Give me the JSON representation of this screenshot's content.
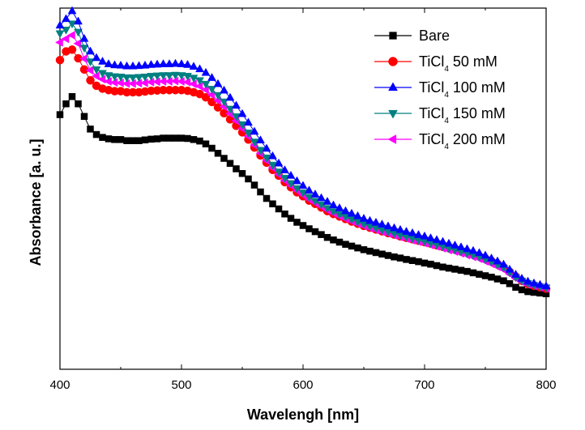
{
  "chart_data": {
    "type": "line",
    "title": "",
    "xlabel": "Wavelengh [nm]",
    "ylabel": "Absorbance [a. u.]",
    "xlim": [
      400,
      800
    ],
    "ylim": [
      0,
      1
    ],
    "xticks": [
      400,
      500,
      600,
      700,
      800
    ],
    "yticks_shown": false,
    "grid": false,
    "legend_position": "top-right",
    "x": [
      400,
      405,
      410,
      415,
      420,
      425,
      430,
      435,
      440,
      445,
      450,
      455,
      460,
      465,
      470,
      475,
      480,
      485,
      490,
      495,
      500,
      505,
      510,
      515,
      520,
      525,
      530,
      535,
      540,
      545,
      550,
      555,
      560,
      565,
      570,
      575,
      580,
      585,
      590,
      595,
      600,
      605,
      610,
      615,
      620,
      625,
      630,
      635,
      640,
      645,
      650,
      655,
      660,
      665,
      670,
      675,
      680,
      685,
      690,
      695,
      700,
      705,
      710,
      715,
      720,
      725,
      730,
      735,
      740,
      745,
      750,
      755,
      760,
      765,
      770,
      775,
      780,
      785,
      790,
      795,
      800
    ],
    "series": [
      {
        "name": "Bare",
        "label_parts": [
          "Bare"
        ],
        "color": "#000000",
        "marker": "square",
        "values": [
          0.705,
          0.735,
          0.755,
          0.735,
          0.7,
          0.665,
          0.65,
          0.642,
          0.638,
          0.636,
          0.636,
          0.633,
          0.633,
          0.633,
          0.635,
          0.637,
          0.638,
          0.64,
          0.64,
          0.64,
          0.64,
          0.639,
          0.636,
          0.632,
          0.624,
          0.612,
          0.598,
          0.584,
          0.57,
          0.555,
          0.542,
          0.527,
          0.51,
          0.491,
          0.473,
          0.458,
          0.444,
          0.43,
          0.418,
          0.407,
          0.398,
          0.389,
          0.381,
          0.373,
          0.365,
          0.358,
          0.352,
          0.346,
          0.341,
          0.336,
          0.331,
          0.327,
          0.323,
          0.319,
          0.315,
          0.311,
          0.308,
          0.304,
          0.301,
          0.298,
          0.294,
          0.291,
          0.287,
          0.283,
          0.28,
          0.277,
          0.274,
          0.271,
          0.267,
          0.263,
          0.259,
          0.255,
          0.25,
          0.245,
          0.237,
          0.227,
          0.22,
          0.215,
          0.213,
          0.211,
          0.209
        ]
      },
      {
        "name": "TiCl4 50 mM",
        "label_parts": [
          "TiCl",
          "4",
          "  50 mM"
        ],
        "color": "#ff0000",
        "marker": "circle",
        "values": [
          0.856,
          0.88,
          0.885,
          0.861,
          0.83,
          0.8,
          0.785,
          0.777,
          0.773,
          0.77,
          0.77,
          0.767,
          0.767,
          0.767,
          0.769,
          0.771,
          0.772,
          0.773,
          0.773,
          0.773,
          0.773,
          0.771,
          0.767,
          0.762,
          0.753,
          0.74,
          0.725,
          0.709,
          0.692,
          0.674,
          0.656,
          0.636,
          0.614,
          0.592,
          0.572,
          0.552,
          0.536,
          0.518,
          0.504,
          0.49,
          0.479,
          0.467,
          0.458,
          0.448,
          0.438,
          0.43,
          0.423,
          0.416,
          0.409,
          0.403,
          0.397,
          0.392,
          0.387,
          0.382,
          0.377,
          0.373,
          0.368,
          0.364,
          0.36,
          0.356,
          0.352,
          0.348,
          0.343,
          0.339,
          0.335,
          0.331,
          0.326,
          0.322,
          0.318,
          0.313,
          0.307,
          0.3,
          0.292,
          0.283,
          0.27,
          0.257,
          0.245,
          0.236,
          0.231,
          0.227,
          0.223
        ]
      },
      {
        "name": "TiCl4 100 mM",
        "label_parts": [
          "TiCl",
          "4",
          " 100 mM"
        ],
        "color": "#0000ff",
        "marker": "triangle-up",
        "values": [
          0.952,
          0.97,
          0.992,
          0.963,
          0.915,
          0.88,
          0.862,
          0.852,
          0.845,
          0.842,
          0.841,
          0.839,
          0.839,
          0.84,
          0.841,
          0.843,
          0.844,
          0.845,
          0.845,
          0.846,
          0.845,
          0.843,
          0.838,
          0.831,
          0.821,
          0.807,
          0.79,
          0.772,
          0.752,
          0.73,
          0.707,
          0.683,
          0.658,
          0.634,
          0.611,
          0.59,
          0.57,
          0.551,
          0.536,
          0.521,
          0.508,
          0.495,
          0.484,
          0.474,
          0.464,
          0.454,
          0.446,
          0.438,
          0.431,
          0.424,
          0.417,
          0.411,
          0.406,
          0.401,
          0.396,
          0.391,
          0.386,
          0.381,
          0.377,
          0.372,
          0.368,
          0.363,
          0.358,
          0.353,
          0.348,
          0.343,
          0.338,
          0.333,
          0.328,
          0.322,
          0.315,
          0.307,
          0.299,
          0.29,
          0.276,
          0.262,
          0.251,
          0.243,
          0.238,
          0.234,
          0.23
        ]
      },
      {
        "name": "TiCl4 150 mM",
        "label_parts": [
          "TiCl",
          "4",
          " 150 mM"
        ],
        "color": "#008080",
        "marker": "triangle-down",
        "values": [
          0.93,
          0.94,
          0.957,
          0.934,
          0.89,
          0.852,
          0.83,
          0.82,
          0.814,
          0.811,
          0.81,
          0.808,
          0.808,
          0.809,
          0.81,
          0.812,
          0.813,
          0.814,
          0.814,
          0.815,
          0.814,
          0.812,
          0.807,
          0.8,
          0.79,
          0.776,
          0.759,
          0.741,
          0.721,
          0.7,
          0.678,
          0.655,
          0.63,
          0.607,
          0.586,
          0.566,
          0.547,
          0.53,
          0.515,
          0.501,
          0.489,
          0.477,
          0.466,
          0.456,
          0.446,
          0.437,
          0.429,
          0.422,
          0.415,
          0.408,
          0.402,
          0.396,
          0.391,
          0.386,
          0.381,
          0.376,
          0.371,
          0.367,
          0.362,
          0.358,
          0.354,
          0.349,
          0.345,
          0.34,
          0.335,
          0.331,
          0.326,
          0.321,
          0.316,
          0.311,
          0.304,
          0.297,
          0.289,
          0.281,
          0.268,
          0.255,
          0.245,
          0.238,
          0.233,
          0.229,
          0.226
        ]
      },
      {
        "name": "TiCl4 200 mM",
        "label_parts": [
          "TiCl",
          "4",
          " 200 mM"
        ],
        "color": "#ff00ff",
        "marker": "triangle-left",
        "values": [
          0.905,
          0.915,
          0.925,
          0.902,
          0.86,
          0.828,
          0.812,
          0.803,
          0.797,
          0.794,
          0.793,
          0.791,
          0.791,
          0.792,
          0.793,
          0.795,
          0.796,
          0.797,
          0.797,
          0.798,
          0.797,
          0.795,
          0.79,
          0.784,
          0.774,
          0.76,
          0.744,
          0.727,
          0.708,
          0.688,
          0.667,
          0.645,
          0.621,
          0.598,
          0.578,
          0.558,
          0.54,
          0.523,
          0.509,
          0.495,
          0.483,
          0.471,
          0.461,
          0.451,
          0.441,
          0.432,
          0.424,
          0.417,
          0.41,
          0.403,
          0.397,
          0.391,
          0.386,
          0.381,
          0.376,
          0.371,
          0.366,
          0.362,
          0.357,
          0.353,
          0.349,
          0.344,
          0.34,
          0.335,
          0.33,
          0.326,
          0.321,
          0.316,
          0.311,
          0.306,
          0.299,
          0.292,
          0.284,
          0.276,
          0.264,
          0.252,
          0.242,
          0.235,
          0.231,
          0.227,
          0.224
        ]
      }
    ]
  }
}
